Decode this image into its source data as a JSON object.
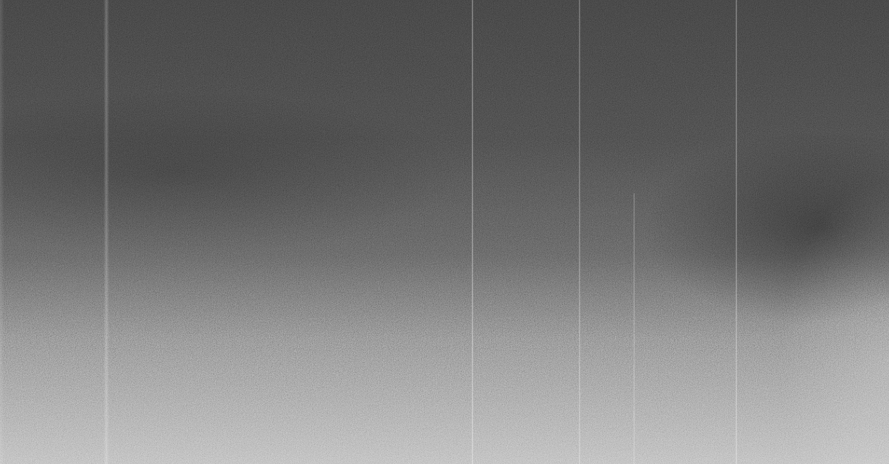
{
  "image": {
    "description_tags": [
      "noisy-grayscale-gradient",
      "vertical-streaks"
    ],
    "colors": {
      "top": "#3c3c3c",
      "middle": "#5a5a5a",
      "bottom": "#b4b4b4"
    }
  }
}
